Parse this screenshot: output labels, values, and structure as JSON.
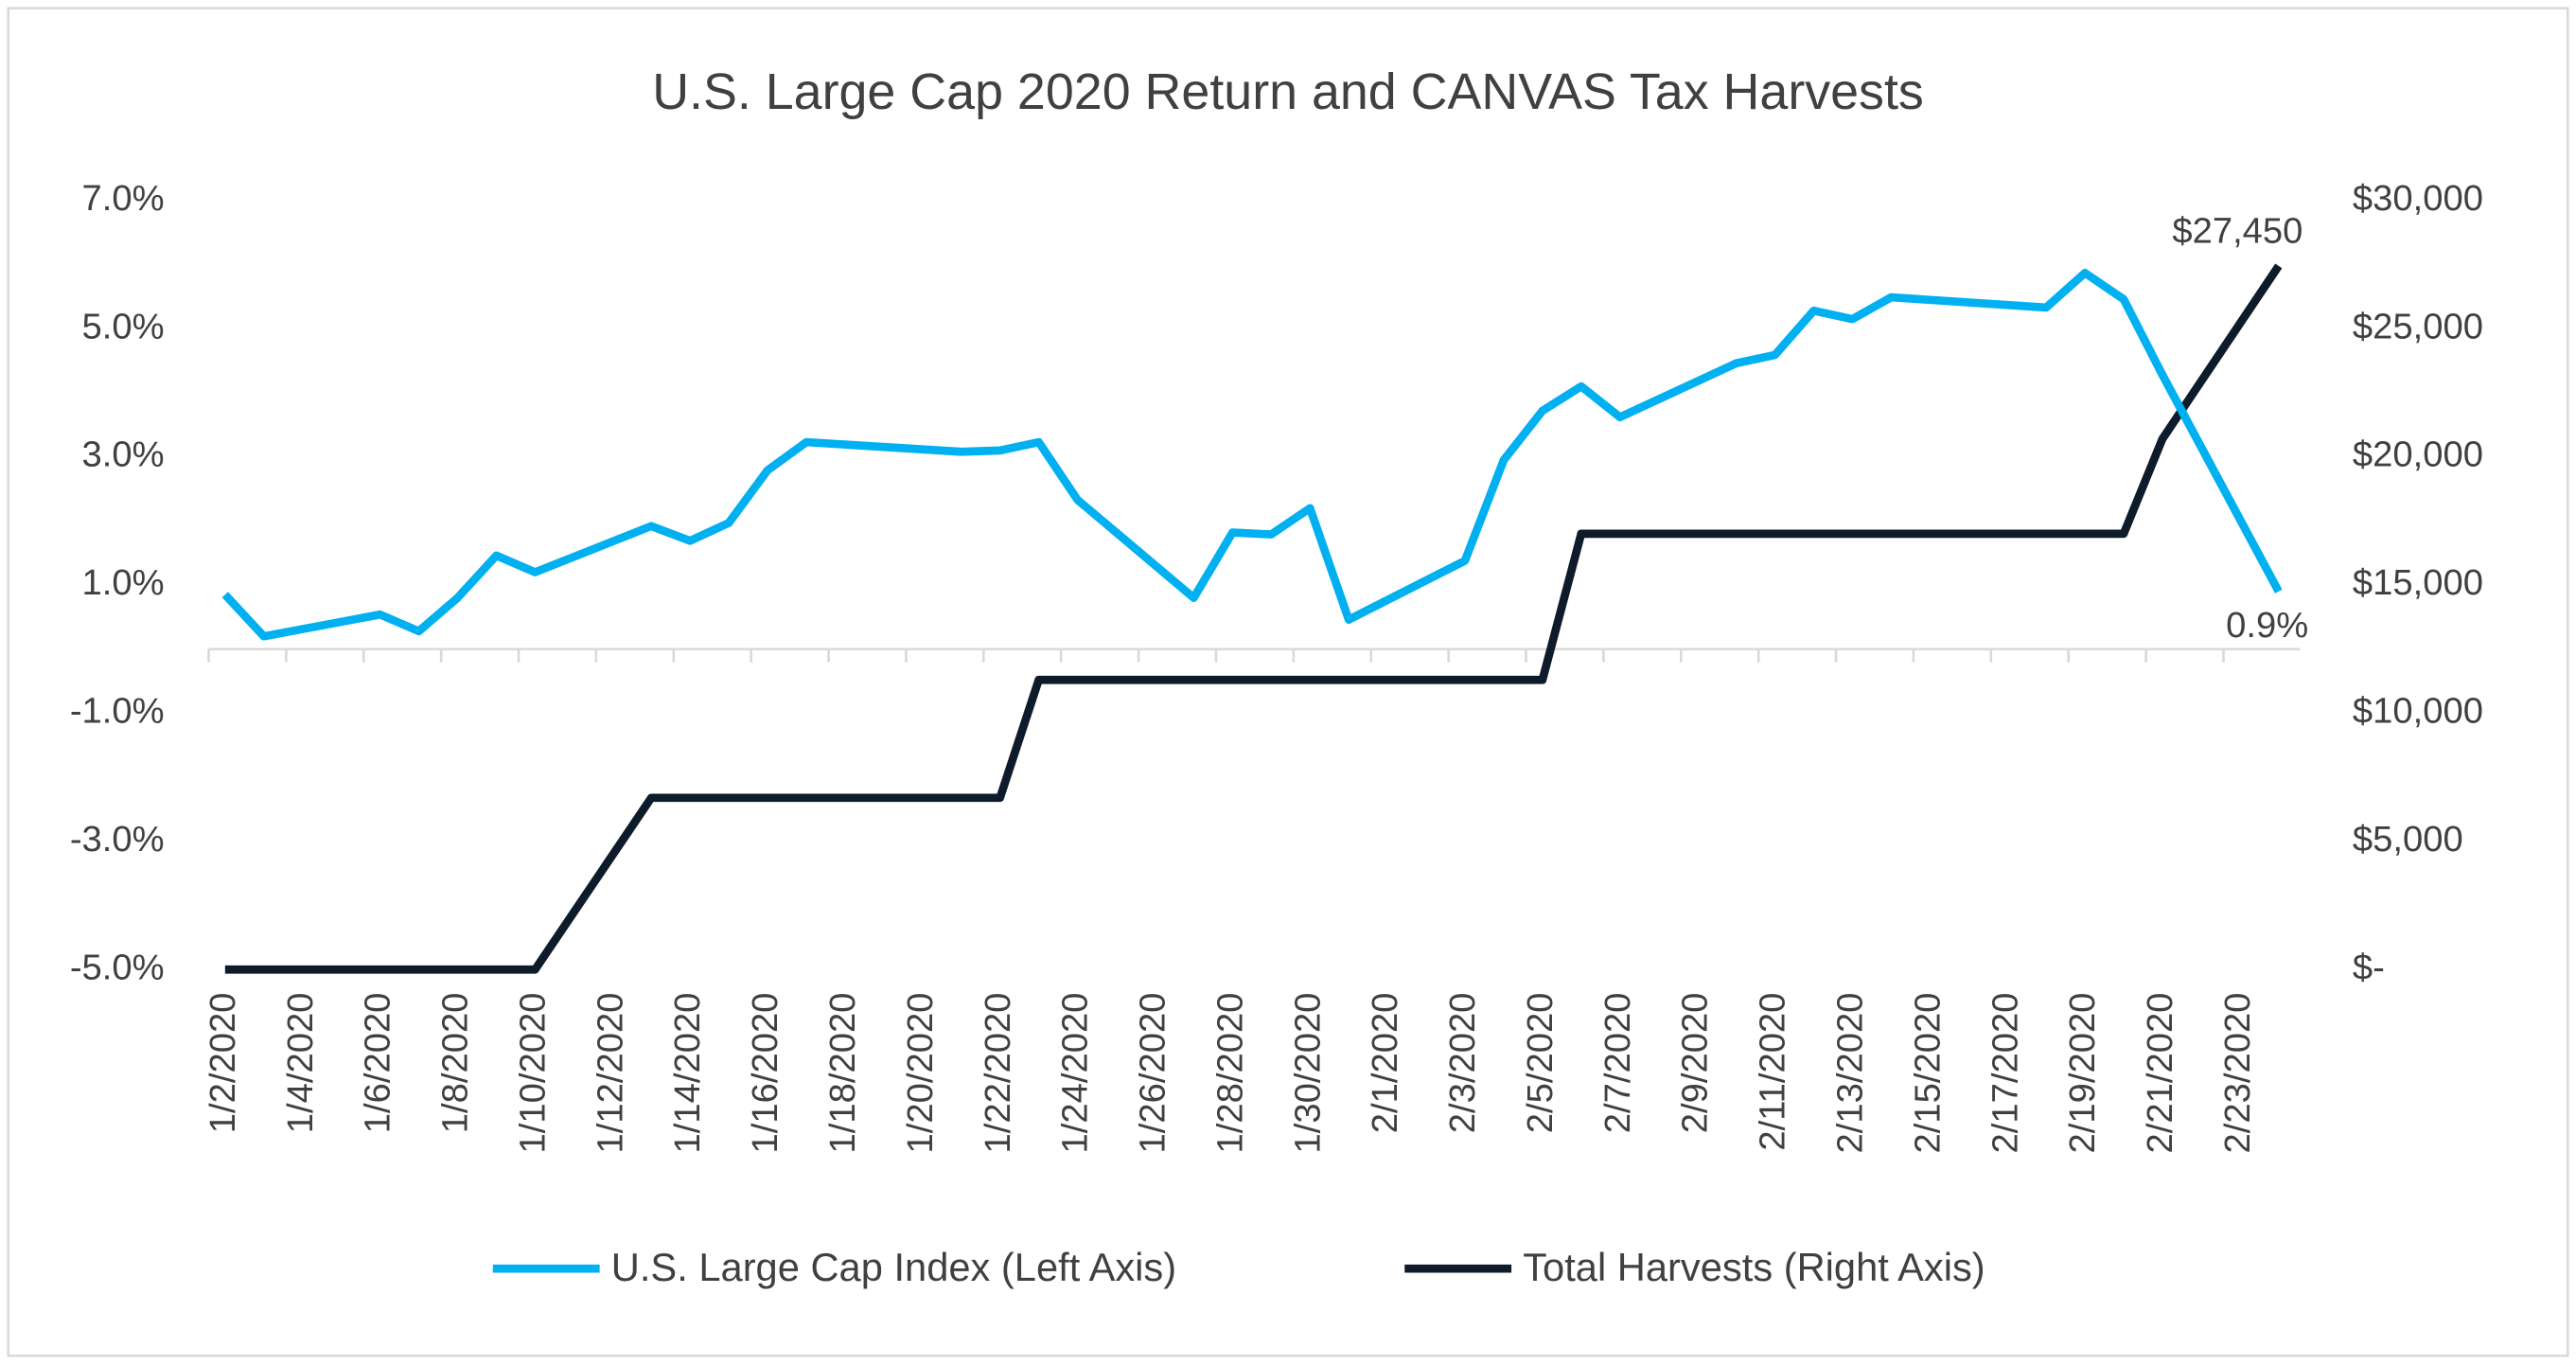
{
  "chart_data": {
    "type": "line",
    "title": "U.S. Large Cap 2020 Return and CANVAS Tax Harvests",
    "x": [
      "1/2/2020",
      "1/3/2020",
      "1/6/2020",
      "1/7/2020",
      "1/8/2020",
      "1/9/2020",
      "1/10/2020",
      "1/13/2020",
      "1/14/2020",
      "1/15/2020",
      "1/16/2020",
      "1/17/2020",
      "1/21/2020",
      "1/22/2020",
      "1/23/2020",
      "1/24/2020",
      "1/27/2020",
      "1/28/2020",
      "1/29/2020",
      "1/30/2020",
      "1/31/2020",
      "2/3/2020",
      "2/4/2020",
      "2/5/2020",
      "2/6/2020",
      "2/7/2020",
      "2/10/2020",
      "2/11/2020",
      "2/12/2020",
      "2/13/2020",
      "2/14/2020",
      "2/18/2020",
      "2/19/2020",
      "2/20/2020",
      "2/21/2020",
      "2/24/2020"
    ],
    "xlim": [
      "1/2/2020",
      "2/24/2020"
    ],
    "xticks": [
      "1/2/2020",
      "1/4/2020",
      "1/6/2020",
      "1/8/2020",
      "1/10/2020",
      "1/12/2020",
      "1/14/2020",
      "1/16/2020",
      "1/18/2020",
      "1/20/2020",
      "1/22/2020",
      "1/24/2020",
      "1/26/2020",
      "1/28/2020",
      "1/30/2020",
      "2/1/2020",
      "2/3/2020",
      "2/5/2020",
      "2/7/2020",
      "2/9/2020",
      "2/11/2020",
      "2/13/2020",
      "2/15/2020",
      "2/17/2020",
      "2/19/2020",
      "2/21/2020",
      "2/23/2020"
    ],
    "ylim": [
      -5,
      7
    ],
    "yticks": [
      {
        "value": 7,
        "label": "7.0%"
      },
      {
        "value": 5,
        "label": "5.0%"
      },
      {
        "value": 3,
        "label": "3.0%"
      },
      {
        "value": 1,
        "label": "1.0%"
      },
      {
        "value": -1,
        "label": "-1.0%"
      },
      {
        "value": -3,
        "label": "-3.0%"
      },
      {
        "value": -5,
        "label": "-5.0%"
      }
    ],
    "y2lim": [
      0,
      30000
    ],
    "y2ticks": [
      {
        "value": 30000,
        "label": "$30,000"
      },
      {
        "value": 25000,
        "label": "$25,000"
      },
      {
        "value": 20000,
        "label": "$20,000"
      },
      {
        "value": 15000,
        "label": "$15,000"
      },
      {
        "value": 10000,
        "label": "$10,000"
      },
      {
        "value": 5000,
        "label": "$5,000"
      },
      {
        "value": 0,
        "label": "$-"
      }
    ],
    "legend": "bottom",
    "series": [
      {
        "name": "U.S. Large Cap Index (Left Axis)",
        "color": "#00b0f0",
        "values": [
          0.85,
          0.2,
          0.54,
          0.28,
          0.8,
          1.46,
          1.2,
          1.92,
          1.69,
          1.97,
          2.79,
          3.23,
          3.08,
          3.1,
          3.23,
          2.33,
          0.8,
          1.82,
          1.79,
          2.2,
          0.46,
          1.38,
          2.95,
          3.72,
          4.1,
          3.62,
          4.46,
          4.59,
          5.28,
          5.15,
          5.49,
          5.33,
          5.87,
          5.46,
          4.28,
          0.9
        ],
        "value_labels": [
          null,
          null,
          null,
          null,
          null,
          null,
          null,
          null,
          null,
          null,
          null,
          null,
          null,
          null,
          null,
          null,
          null,
          null,
          null,
          null,
          null,
          null,
          null,
          null,
          null,
          null,
          null,
          null,
          null,
          null,
          null,
          null,
          null,
          null,
          null,
          "0.9%"
        ]
      },
      {
        "name": "Total Harvests (Right Axis)",
        "color": "#0d1b2a",
        "axis": "y2",
        "values": [
          0,
          0,
          0,
          0,
          0,
          0,
          0,
          6700,
          6700,
          6700,
          6700,
          6700,
          6700,
          6700,
          11300,
          11300,
          11300,
          11300,
          11300,
          11300,
          11300,
          11300,
          11300,
          11300,
          17000,
          17000,
          17000,
          17000,
          17000,
          17000,
          17000,
          17000,
          17000,
          17000,
          20700,
          27450
        ],
        "value_labels": [
          null,
          null,
          null,
          null,
          null,
          null,
          null,
          null,
          null,
          null,
          null,
          null,
          null,
          null,
          null,
          null,
          null,
          null,
          null,
          null,
          null,
          null,
          null,
          null,
          null,
          null,
          null,
          null,
          null,
          null,
          null,
          null,
          null,
          null,
          null,
          "$27,450"
        ]
      }
    ]
  }
}
